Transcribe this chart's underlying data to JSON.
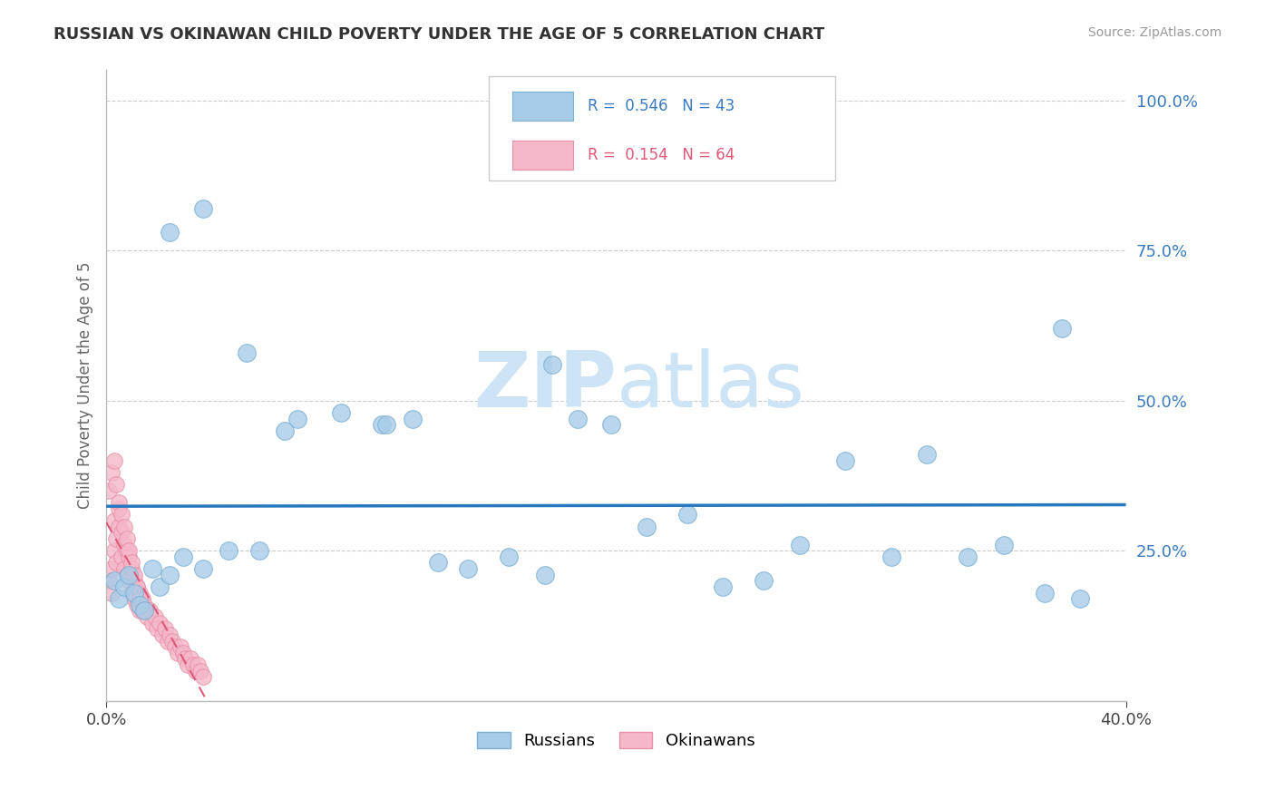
{
  "title": "RUSSIAN VS OKINAWAN CHILD POVERTY UNDER THE AGE OF 5 CORRELATION CHART",
  "source": "Source: ZipAtlas.com",
  "ylabel_label": "Child Poverty Under the Age of 5",
  "xlim": [
    0.0,
    0.4
  ],
  "ylim": [
    0.0,
    1.05
  ],
  "russian_R": 0.546,
  "russian_N": 43,
  "okinawan_R": 0.154,
  "okinawan_N": 64,
  "russian_color": "#a8cce8",
  "russian_edge": "#7aafd4",
  "okinawan_color": "#f5b8c8",
  "okinawan_edge": "#e890a8",
  "trend_russian_color": "#2878be",
  "trend_okinawan_color": "#e05878",
  "watermark_color": "#cce4f5",
  "background_color": "#ffffff",
  "grid_color": "#cccccc",
  "title_color": "#333333",
  "source_color": "#999999",
  "axis_label_color": "#666666",
  "ytick_color": "#3a7bbf",
  "ytick_vals": [
    0.25,
    0.5,
    0.75,
    1.0
  ],
  "ytick_labels": [
    "25.0%",
    "50.0%",
    "75.0%",
    "100.0%"
  ],
  "russians_x": [
    0.003,
    0.005,
    0.007,
    0.009,
    0.011,
    0.013,
    0.015,
    0.018,
    0.021,
    0.025,
    0.03,
    0.038,
    0.048,
    0.06,
    0.075,
    0.092,
    0.108,
    0.12,
    0.13,
    0.142,
    0.158,
    0.172,
    0.185,
    0.198,
    0.212,
    0.228,
    0.242,
    0.258,
    0.272,
    0.29,
    0.308,
    0.322,
    0.338,
    0.352,
    0.368,
    0.382,
    0.025,
    0.038,
    0.055,
    0.07,
    0.11,
    0.175,
    0.375
  ],
  "russians_y": [
    0.2,
    0.17,
    0.19,
    0.21,
    0.18,
    0.16,
    0.15,
    0.22,
    0.19,
    0.21,
    0.24,
    0.22,
    0.25,
    0.25,
    0.47,
    0.48,
    0.46,
    0.47,
    0.23,
    0.22,
    0.24,
    0.21,
    0.47,
    0.46,
    0.29,
    0.31,
    0.19,
    0.2,
    0.26,
    0.4,
    0.24,
    0.41,
    0.24,
    0.26,
    0.18,
    0.17,
    0.78,
    0.82,
    0.58,
    0.45,
    0.46,
    0.56,
    0.62
  ],
  "okinawans_x": [
    0.001,
    0.002,
    0.002,
    0.003,
    0.003,
    0.004,
    0.004,
    0.005,
    0.005,
    0.006,
    0.006,
    0.007,
    0.007,
    0.008,
    0.008,
    0.009,
    0.009,
    0.01,
    0.01,
    0.011,
    0.011,
    0.012,
    0.012,
    0.013,
    0.013,
    0.014,
    0.015,
    0.016,
    0.017,
    0.018,
    0.019,
    0.02,
    0.021,
    0.022,
    0.023,
    0.024,
    0.025,
    0.026,
    0.027,
    0.028,
    0.029,
    0.03,
    0.031,
    0.032,
    0.033,
    0.034,
    0.035,
    0.036,
    0.037,
    0.038,
    0.001,
    0.002,
    0.003,
    0.004,
    0.005,
    0.006,
    0.007,
    0.008,
    0.009,
    0.01,
    0.011,
    0.012,
    0.013,
    0.014
  ],
  "okinawans_y": [
    0.2,
    0.22,
    0.18,
    0.25,
    0.3,
    0.27,
    0.23,
    0.29,
    0.32,
    0.28,
    0.24,
    0.26,
    0.22,
    0.25,
    0.21,
    0.24,
    0.2,
    0.22,
    0.18,
    0.2,
    0.17,
    0.19,
    0.16,
    0.18,
    0.15,
    0.17,
    0.16,
    0.14,
    0.15,
    0.13,
    0.14,
    0.12,
    0.13,
    0.11,
    0.12,
    0.1,
    0.11,
    0.1,
    0.09,
    0.08,
    0.09,
    0.08,
    0.07,
    0.06,
    0.07,
    0.06,
    0.05,
    0.06,
    0.05,
    0.04,
    0.35,
    0.38,
    0.4,
    0.36,
    0.33,
    0.31,
    0.29,
    0.27,
    0.25,
    0.23,
    0.21,
    0.19,
    0.17,
    0.15
  ]
}
